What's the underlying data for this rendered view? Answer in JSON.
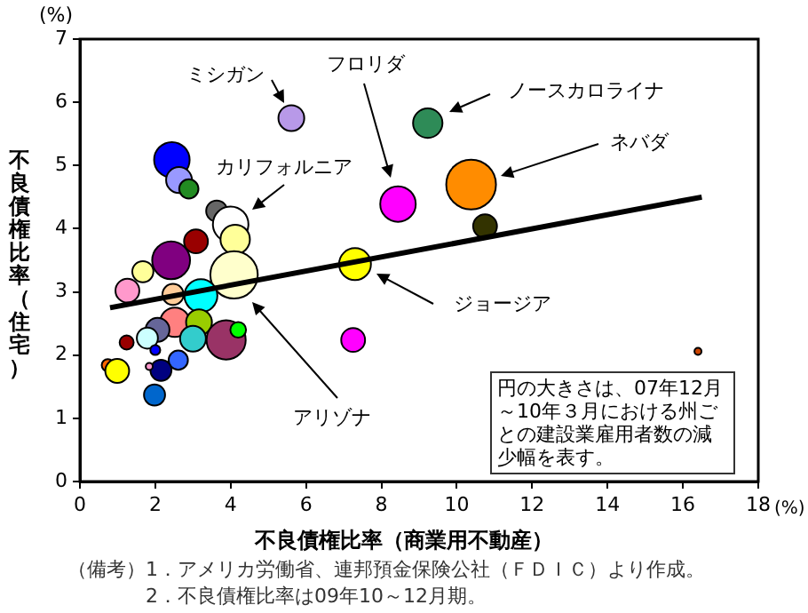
{
  "chart_data": {
    "type": "bubble",
    "xlabel": "不良債権比率（商業用不動産）",
    "ylabel": "不良債権比率（住宅）",
    "xlim": [
      0,
      18
    ],
    "xticks": [
      0,
      2,
      4,
      6,
      8,
      10,
      12,
      14,
      16,
      18
    ],
    "ylim": [
      0,
      7
    ],
    "yticks": [
      0,
      1,
      2,
      3,
      4,
      5,
      6,
      7
    ],
    "grid": false,
    "legend": false,
    "series": [
      {
        "x": [
          5.61,
          9.23,
          10.38,
          8.44,
          10.75,
          7.3,
          7.25,
          16.4,
          2.44,
          2.63,
          2.89,
          3.63,
          4.0,
          4.12,
          3.08,
          2.42,
          1.67,
          4.09,
          1.26,
          2.47,
          3.21,
          2.52,
          3.16,
          3.0,
          3.88,
          4.2,
          2.06,
          1.79,
          1.24,
          2.0,
          2.61,
          2.15,
          0.74,
          0.99,
          1.84,
          1.98
        ],
        "values": [
          5.75,
          5.67,
          4.7,
          4.39,
          4.04,
          3.44,
          2.24,
          2.06,
          5.09,
          4.77,
          4.63,
          4.28,
          4.07,
          3.83,
          3.8,
          3.5,
          3.32,
          3.27,
          3.02,
          2.96,
          2.94,
          2.52,
          2.52,
          2.26,
          2.24,
          2.4,
          2.4,
          2.27,
          2.2,
          2.08,
          1.92,
          1.76,
          1.84,
          1.75,
          1.82,
          1.37
        ],
        "sizes": [
          0.27,
          0.35,
          1,
          0.51,
          0.23,
          0.41,
          0.23,
          0.02,
          0.51,
          0.27,
          0.15,
          0.18,
          0.51,
          0.35,
          0.23,
          0.58,
          0.18,
          0.91,
          0.23,
          0.18,
          0.44,
          0.35,
          0.27,
          0.27,
          0.62,
          0.1,
          0.23,
          0.18,
          0.08,
          0.04,
          0.15,
          0.18,
          0.06,
          0.23,
          0.02,
          0.18
        ],
        "colors": [
          "#b899e8",
          "#2e8b57",
          "#ff8c00",
          "#ff00ff",
          "#333300",
          "#ffff00",
          "#ff00ff",
          "#cc4400",
          "#0000ff",
          "#9999ff",
          "#228b22",
          "#666666",
          "#ffffff",
          "#ffff99",
          "#990000",
          "#800080",
          "#ffff99",
          "#ffffcc",
          "#ff99cc",
          "#ffcc99",
          "#00ffff",
          "#ff8080",
          "#99cc00",
          "#33cccc",
          "#993366",
          "#00ff00",
          "#666699",
          "#ccffff",
          "#990000",
          "#0000ff",
          "#3366ff",
          "#000080",
          "#ff6600",
          "#ffff00",
          "#ff99cc",
          "#0066cc"
        ]
      },
      {
        "type": "line",
        "x": [
          0.8,
          16.5
        ],
        "values": [
          2.75,
          4.5
        ],
        "color": "#000000"
      }
    ],
    "annotations": [
      "ミシガン",
      "フロリダ",
      "ノースカロライナ",
      "ネバダ",
      "カリフォルニア",
      "ジョージア",
      "アリゾナ",
      "(%)",
      "(%)",
      "円の大きさは、07年12月～10年３月における州ごとの建設業雇用者数の減少幅を表す。",
      "（備考）1．アメリカ労働省、連邦預金保険公社（ＦＤＩＣ）より作成。",
      "2．不良債権比率は09年10～12月期。"
    ]
  }
}
